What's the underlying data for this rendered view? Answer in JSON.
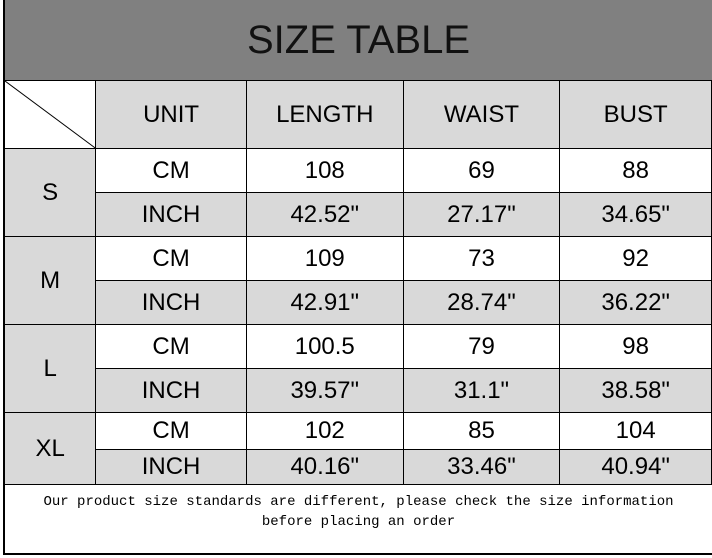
{
  "title": "SIZE TABLE",
  "headers": [
    "UNIT",
    "LENGTH",
    "WAIST",
    "BUST"
  ],
  "sizes": [
    {
      "size": "S",
      "rows": [
        [
          "CM",
          "108",
          "69",
          "88"
        ],
        [
          "INCH",
          "42.52\"",
          "27.17\"",
          "34.65\""
        ]
      ]
    },
    {
      "size": "M",
      "rows": [
        [
          "CM",
          "109",
          "73",
          "92"
        ],
        [
          "INCH",
          "42.91\"",
          "28.74\"",
          "36.22\""
        ]
      ]
    },
    {
      "size": "L",
      "rows": [
        [
          "CM",
          "100.5",
          "79",
          "98"
        ],
        [
          "INCH",
          "39.57\"",
          "31.1\"",
          "38.58\""
        ]
      ]
    },
    {
      "size": "XL",
      "rows": [
        [
          "CM",
          "102",
          "85",
          "104"
        ],
        [
          "INCH",
          "40.16\"",
          "33.46\"",
          "40.94\""
        ]
      ]
    }
  ],
  "note": {
    "line1": "Our product size standards are different, please check the size information",
    "line2": "before placing an order"
  }
}
